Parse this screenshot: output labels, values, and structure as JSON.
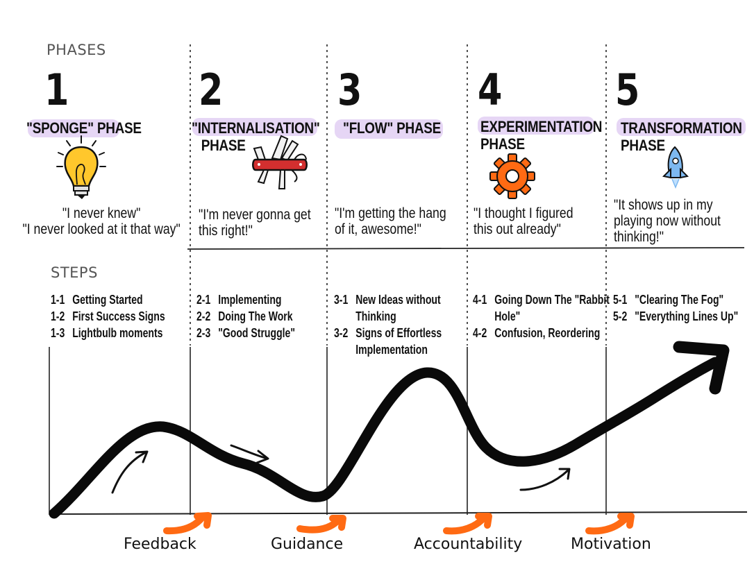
{
  "phases_label": "PHASES",
  "steps_label": "STEPS",
  "phases": [
    {
      "number": "1",
      "name_lines": [
        "\"SPONGE\" PHASE"
      ],
      "icon": "lightbulb-icon",
      "quote_lines": [
        "\"I never knew\"",
        "\"I never looked at it that way\""
      ],
      "steps": [
        {
          "code": "1-1",
          "label": "Getting Started"
        },
        {
          "code": "1-2",
          "label": "First Success Signs"
        },
        {
          "code": "1-3",
          "label": "Lightbulb moments"
        }
      ]
    },
    {
      "number": "2",
      "name_lines": [
        "\"INTERNALISATION\"",
        "PHASE"
      ],
      "icon": "swiss-army-knife-icon",
      "quote_lines": [
        "\"I'm never gonna get",
        "this right!\""
      ],
      "steps": [
        {
          "code": "2-1",
          "label": "Implementing"
        },
        {
          "code": "2-2",
          "label": "Doing The Work"
        },
        {
          "code": "2-3",
          "label": "\"Good Struggle\""
        }
      ]
    },
    {
      "number": "3",
      "name_lines": [
        "\"FLOW\" PHASE"
      ],
      "icon": "",
      "quote_lines": [
        "\"I'm getting the hang",
        "of it, awesome!\""
      ],
      "steps": [
        {
          "code": "3-1",
          "label": "New Ideas without",
          "label2": "Thinking"
        },
        {
          "code": "3-2",
          "label": "Signs of Effortless",
          "label2": "Implementation"
        }
      ]
    },
    {
      "number": "4",
      "name_lines": [
        "EXPERIMENTATION",
        "PHASE"
      ],
      "icon": "gear-icon",
      "quote_lines": [
        "\"I thought I figured",
        "this out already\""
      ],
      "steps": [
        {
          "code": "4-1",
          "label": "Going Down The \"Rabbit",
          "label2": "Hole\""
        },
        {
          "code": "4-2",
          "label": "Confusion, Reordering"
        }
      ]
    },
    {
      "number": "5",
      "name_lines": [
        "TRANSFORMATION",
        "PHASE"
      ],
      "icon": "rocket-icon",
      "quote_lines": [
        "\"It shows up in my",
        "playing now without",
        "thinking!\""
      ],
      "steps": [
        {
          "code": "5-1",
          "label": "\"Clearing The Fog\""
        },
        {
          "code": "5-2",
          "label": "\"Everything Lines Up\""
        }
      ]
    }
  ],
  "bottom_labels": [
    "Feedback",
    "Guidance",
    "Accountability",
    "Motivation"
  ],
  "colors": {
    "highlight": "#e6d6f5",
    "orange": "#ff6a13",
    "bulb": "#ffc72c",
    "knife": "#d32f2f",
    "rocket": "#7db8f0",
    "label_gray": "#555555"
  }
}
